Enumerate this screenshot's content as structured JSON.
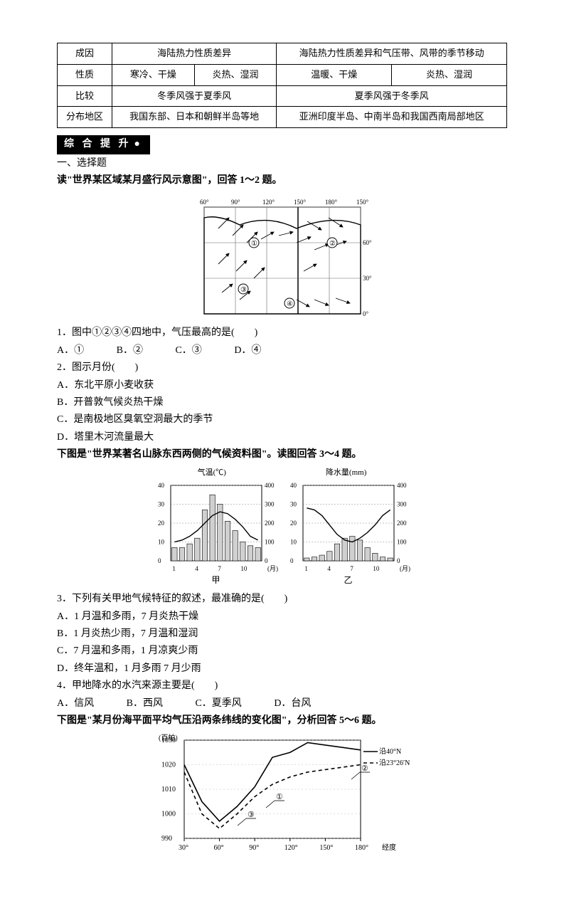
{
  "table": {
    "rows": [
      {
        "h": "成因",
        "c1": "海陆热力性质差异",
        "c2": "海陆热力性质差异和气压带、风带的季节移动",
        "span1": 2,
        "span2": 2
      },
      {
        "h": "性质",
        "a": "寒冷、干燥",
        "b": "炎热、湿润",
        "c": "温暖、干燥",
        "d": "炎热、湿润"
      },
      {
        "h": "比较",
        "c1": "冬季风强于夏季风",
        "c2": "夏季风强于冬季风",
        "span1": 2,
        "span2": 2
      },
      {
        "h": "分布地区",
        "c1": "我国东部、日本和朝鲜半岛等地",
        "c2": "亚洲印度半岛、中南半岛和我国西南局部地区",
        "span1": 2,
        "span2": 2
      }
    ]
  },
  "badge": "综 合 提 升",
  "part1_title": "一、选择题",
  "intro1": "读\"世界某区域某月盛行风示意图\"，回答 1～2 题。",
  "map1": {
    "lons": [
      "60°",
      "90°",
      "120°",
      "150°",
      "180°",
      "150°"
    ],
    "lats": [
      "60°",
      "30°",
      "0°"
    ],
    "markers": [
      "①",
      "②",
      "③",
      "④"
    ],
    "marker_pos": [
      [
        90,
        70
      ],
      [
        200,
        70
      ],
      [
        75,
        135
      ],
      [
        140,
        155
      ]
    ],
    "arrows_desc": "wind arrows schematic"
  },
  "q1": "1．图中①②③④四地中，气压最高的是(　　)",
  "q1_choices": {
    "A": "A．①",
    "B": "B．②",
    "C": "C．③",
    "D": "D．④"
  },
  "q2": "2．图示月份(　　)",
  "q2_opts": [
    "A．东北平原小麦收获",
    "B．开普敦气候炎热干燥",
    "C．是南极地区臭氧空洞最大的季节",
    "D．塔里木河流量最大"
  ],
  "intro2": "下图是\"世界某著名山脉东西两侧的气候资料图\"。读图回答 3～4 题。",
  "chart12": {
    "yLabelL": "气温(℃)",
    "yLabelR": "降水量(mm)",
    "xticks": [
      "1",
      "4",
      "7",
      "10",
      "(月)"
    ],
    "jiaLabel": "甲",
    "yiLabel": "乙",
    "temp_ticks": [
      0,
      10,
      20,
      30,
      40
    ],
    "prec_ticks": [
      0,
      100,
      200,
      300,
      400
    ],
    "jia": {
      "temp": [
        10,
        11,
        13,
        16,
        20,
        24,
        26,
        25,
        22,
        18,
        13,
        11
      ],
      "prec": [
        70,
        70,
        90,
        120,
        270,
        350,
        300,
        210,
        160,
        100,
        80,
        70
      ]
    },
    "yi": {
      "temp": [
        28,
        27,
        24,
        19,
        14,
        11,
        10,
        12,
        15,
        19,
        24,
        27
      ],
      "prec": [
        15,
        20,
        30,
        50,
        90,
        120,
        130,
        110,
        70,
        40,
        20,
        15
      ]
    },
    "colors": {
      "bar": "#d0d0d0",
      "stroke": "#000",
      "line": "#000",
      "grid": "#888",
      "bg": "#fff"
    }
  },
  "q3": "3．下列有关甲地气候特征的叙述，最准确的是(　　)",
  "q3_opts": [
    "A．1 月温和多雨，7 月炎热干燥",
    "B．1 月炎热少雨，7 月温和湿润",
    "C．7 月温和多雨，1 月凉爽少雨",
    "D．终年温和，1 月多雨 7 月少雨"
  ],
  "q4": "4．甲地降水的水汽来源主要是(　　)",
  "q4_choices": {
    "A": "A．信风",
    "B": "B．西风",
    "C": "C．夏季风",
    "D": "D．台风"
  },
  "intro3": "下图是\"某月份海平面平均气压沿两条纬线的变化图\"，分析回答 5～6 题。",
  "chart3": {
    "yLabel": "(百帕)",
    "yticks": [
      990,
      1000,
      1010,
      1020,
      1030
    ],
    "xLabel": "经度",
    "xticks": [
      "30°",
      "60°",
      "90°",
      "120°",
      "150°",
      "180°"
    ],
    "legend": [
      "沿40°N",
      "沿23°26′N"
    ],
    "series40": [
      1020,
      1005,
      997,
      1003,
      1011,
      1023,
      1025,
      1029,
      1028,
      1027,
      1026
    ],
    "series23": [
      1017,
      1000,
      994,
      1000,
      1007,
      1012,
      1015,
      1017,
      1018,
      1019,
      1020
    ],
    "markers": [
      "①",
      "②",
      "③"
    ],
    "marker_pos": [
      [
        115,
        95
      ],
      [
        235,
        55
      ],
      [
        75,
        120
      ]
    ],
    "colors": {
      "grid": "#aaa",
      "line1": "#000",
      "line2": "#000",
      "bg": "#fff"
    }
  }
}
